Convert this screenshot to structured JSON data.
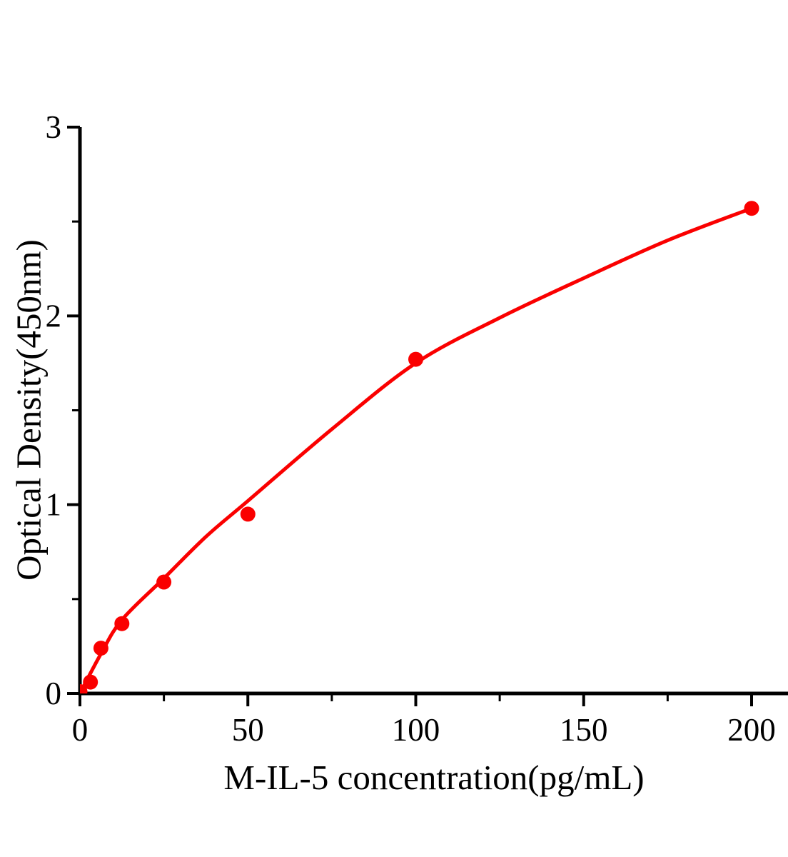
{
  "figure": {
    "background_color": "#ffffff",
    "axis_color": "#000000",
    "accent_color": "#fa0000"
  },
  "chart_data": {
    "type": "scatter",
    "title": "",
    "xlabel": "M-IL-5 concentration(pg/mL)",
    "ylabel": "Optical Density(450nm)",
    "xlim": [
      0,
      211
    ],
    "ylim": [
      0,
      3
    ],
    "x_major_ticks": [
      0,
      50,
      100,
      150,
      200
    ],
    "x_minor_ticks": [
      25,
      75,
      125,
      175
    ],
    "y_major_ticks": [
      0,
      1,
      2,
      3
    ],
    "y_minor_ticks": [
      0.5,
      1.5,
      2.5
    ],
    "grid": false,
    "legend_position": "none",
    "series": [
      {
        "name": "standard-data-points",
        "type": "scatter",
        "marker": "circle",
        "marker_radius_px": 10.5,
        "color": "#fa0000",
        "x": [
          0,
          3.125,
          6.25,
          12.5,
          25,
          50,
          100,
          200
        ],
        "y": [
          0.01,
          0.06,
          0.24,
          0.37,
          0.59,
          0.95,
          1.77,
          2.57
        ]
      },
      {
        "name": "fitted-curve",
        "type": "line",
        "stroke_width_px": 5,
        "color": "#fa0000",
        "x": [
          0,
          6.25,
          12.5,
          25,
          37.5,
          50,
          75,
          100,
          125,
          150,
          175,
          200
        ],
        "y": [
          0.0,
          0.21,
          0.39,
          0.61,
          0.83,
          1.02,
          1.4,
          1.75,
          1.99,
          2.2,
          2.4,
          2.57
        ]
      }
    ]
  }
}
